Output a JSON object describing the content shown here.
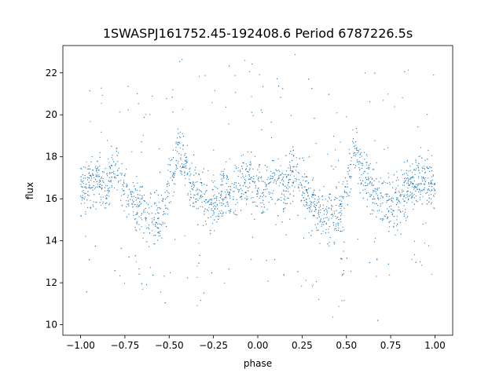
{
  "chart_data": {
    "type": "scatter",
    "title": "1SWASPJ161752.45-192408.6 Period 6787226.5s",
    "xlabel": "phase",
    "ylabel": "flux",
    "xlim": [
      -1.1,
      1.1
    ],
    "ylim": [
      9.5,
      23.3
    ],
    "grid": false,
    "legend": "none",
    "marker_color": "#1f77b4",
    "xticks": [
      {
        "value": -1.0,
        "label": "−1.00"
      },
      {
        "value": -0.75,
        "label": "−0.75"
      },
      {
        "value": -0.5,
        "label": "−0.50"
      },
      {
        "value": -0.25,
        "label": "−0.25"
      },
      {
        "value": 0.0,
        "label": "0.00"
      },
      {
        "value": 0.25,
        "label": "0.25"
      },
      {
        "value": 0.5,
        "label": "0.50"
      },
      {
        "value": 0.75,
        "label": "0.75"
      },
      {
        "value": 1.0,
        "label": "1.00"
      }
    ],
    "yticks": [
      {
        "value": 10,
        "label": "10"
      },
      {
        "value": 12,
        "label": "12"
      },
      {
        "value": 14,
        "label": "14"
      },
      {
        "value": 16,
        "label": "16"
      },
      {
        "value": 18,
        "label": "18"
      },
      {
        "value": 20,
        "label": "20"
      },
      {
        "value": 22,
        "label": "22"
      }
    ],
    "profile_phase": [
      0.0,
      0.05,
      0.1,
      0.13,
      0.17,
      0.2,
      0.23,
      0.27,
      0.3,
      0.35,
      0.4,
      0.45,
      0.47,
      0.5,
      0.53,
      0.55,
      0.6,
      0.63,
      0.65,
      0.7,
      0.75,
      0.8,
      0.85,
      0.9,
      0.95,
      1.0
    ],
    "profile_median_flux": [
      16.3,
      16.6,
      17.0,
      16.4,
      16.8,
      17.5,
      17.2,
      16.3,
      15.7,
      15.5,
      15.0,
      15.2,
      15.6,
      16.8,
      17.6,
      18.4,
      17.3,
      16.6,
      16.3,
      16.0,
      15.6,
      16.2,
      16.5,
      16.8,
      16.9,
      16.3
    ],
    "dips": [
      {
        "phase": 0.48,
        "min_flux": 10.4
      },
      {
        "phase": 0.67,
        "min_flux": 10.2
      },
      {
        "phase": -0.52,
        "min_flux": 10.4
      },
      {
        "phase": -0.33,
        "min_flux": 10.2
      }
    ]
  }
}
